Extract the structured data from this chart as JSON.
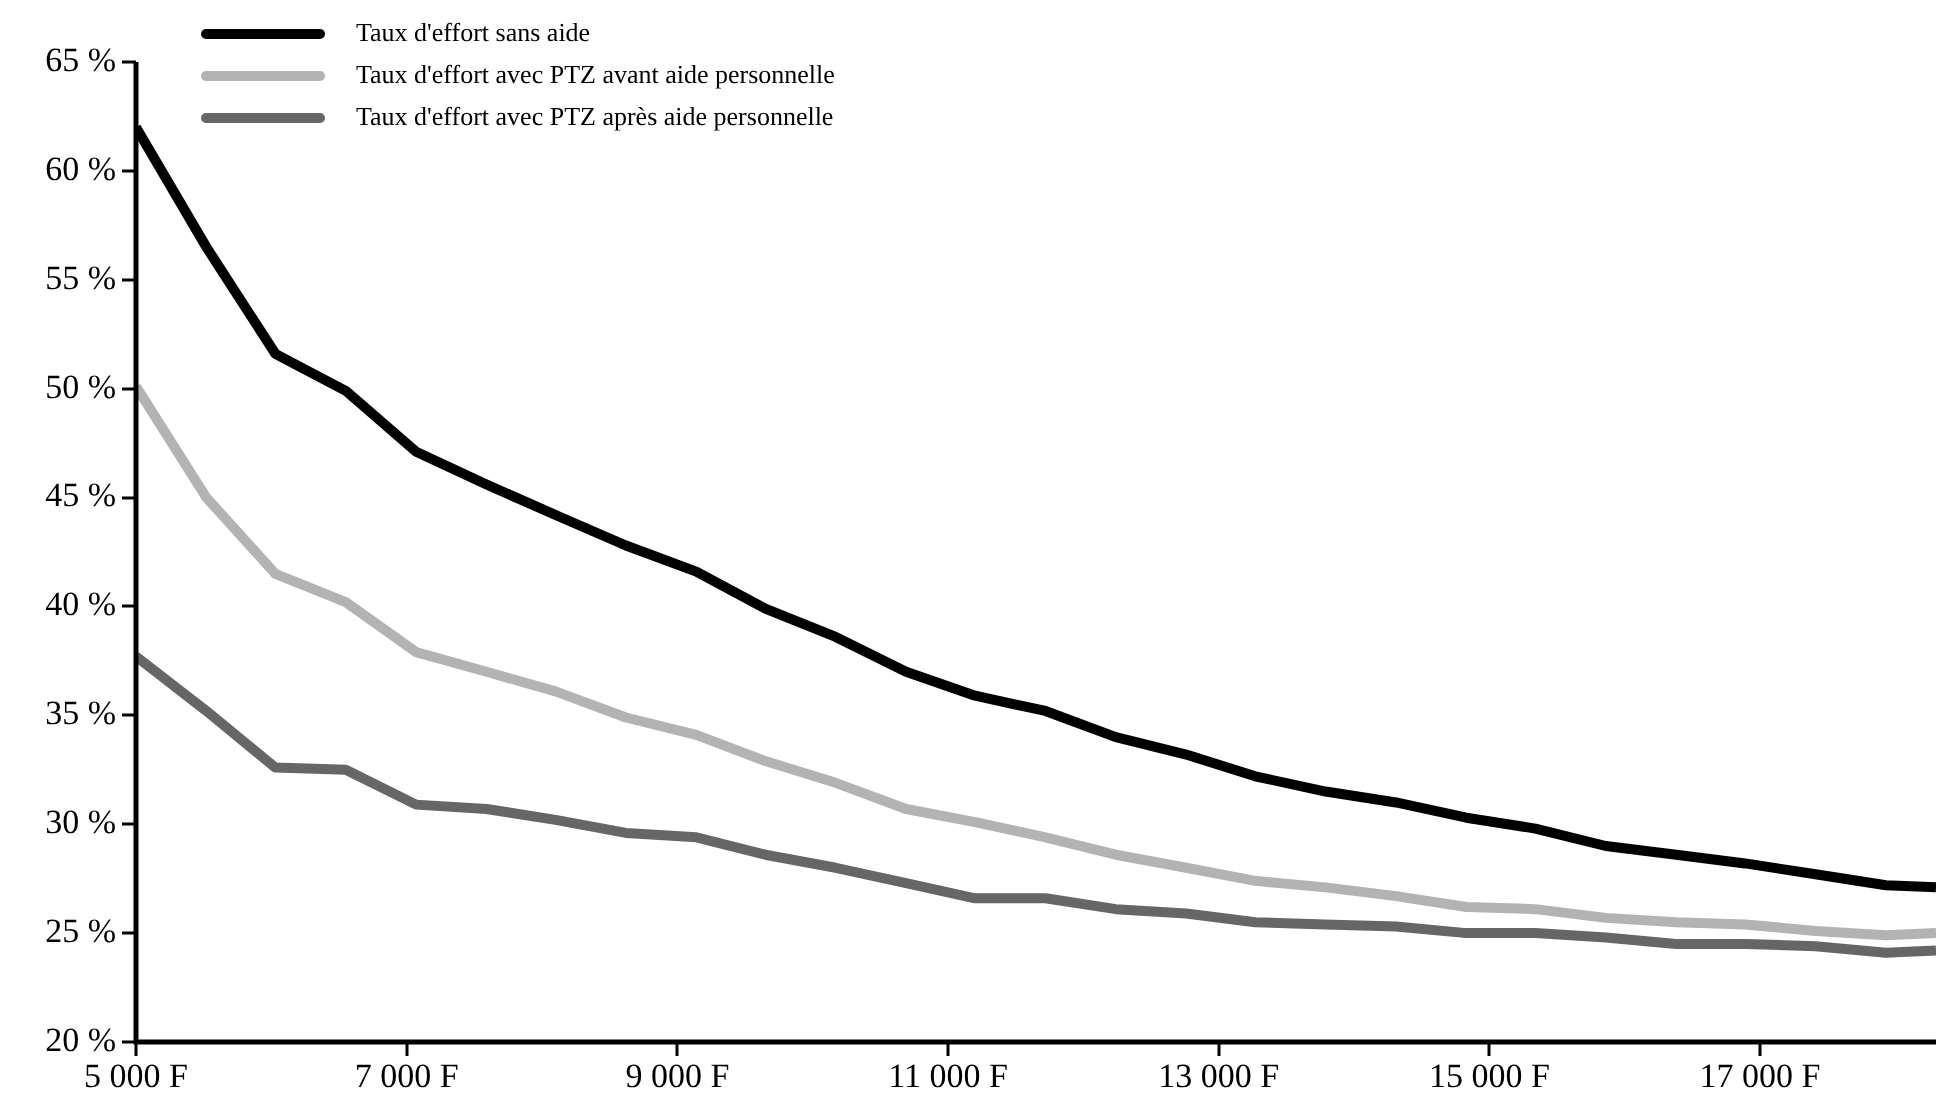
{
  "chart_data": {
    "type": "line",
    "x": [
      5000,
      5520,
      6030,
      6550,
      7070,
      7590,
      8100,
      8620,
      9140,
      9650,
      10170,
      10690,
      11200,
      11720,
      12240,
      12760,
      13270,
      13790,
      14310,
      14830,
      15340,
      15860,
      16380,
      16890,
      17410,
      17930,
      18300
    ],
    "series": [
      {
        "name": "Taux d'effort sans aide",
        "color": "#000000",
        "values": [
          62.0,
          56.5,
          51.6,
          49.9,
          47.1,
          45.6,
          44.2,
          42.8,
          41.6,
          39.9,
          38.6,
          37.0,
          35.9,
          35.2,
          34.0,
          33.2,
          32.2,
          31.5,
          31.0,
          30.3,
          29.8,
          29.0,
          28.6,
          28.2,
          27.7,
          27.2,
          27.1
        ]
      },
      {
        "name": "Taux d'effort avec PTZ avant aide personnelle",
        "color": "#b3b3b3",
        "values": [
          50.1,
          45.0,
          41.5,
          40.2,
          37.9,
          37.0,
          36.1,
          34.9,
          34.1,
          32.9,
          31.9,
          30.7,
          30.1,
          29.4,
          28.6,
          28.0,
          27.4,
          27.1,
          26.7,
          26.2,
          26.1,
          25.7,
          25.5,
          25.4,
          25.1,
          24.9,
          25.0
        ]
      },
      {
        "name": "Taux d'effort avec PTZ après aide personnelle",
        "color": "#666666",
        "values": [
          37.7,
          35.2,
          32.6,
          32.5,
          30.9,
          30.7,
          30.2,
          29.6,
          29.4,
          28.6,
          28.0,
          27.3,
          26.6,
          26.6,
          26.1,
          25.9,
          25.5,
          25.4,
          25.3,
          25.0,
          25.0,
          24.8,
          24.5,
          24.5,
          24.4,
          24.1,
          24.2
        ]
      }
    ],
    "xlim": [
      5000,
      18300
    ],
    "xticks": [
      {
        "value": 5000,
        "label": "5 000 F"
      },
      {
        "value": 7000,
        "label": "7 000 F"
      },
      {
        "value": 9000,
        "label": "9 000 F"
      },
      {
        "value": 11000,
        "label": "11 000 F"
      },
      {
        "value": 13000,
        "label": "13 000 F"
      },
      {
        "value": 15000,
        "label": "15 000 F"
      },
      {
        "value": 17000,
        "label": "17 000 F"
      }
    ],
    "ylim": [
      20,
      65
    ],
    "yticks": [
      {
        "value": 20,
        "label": "20 %"
      },
      {
        "value": 25,
        "label": "25 %"
      },
      {
        "value": 30,
        "label": "30 %"
      },
      {
        "value": 35,
        "label": "35 %"
      },
      {
        "value": 40,
        "label": "40 %"
      },
      {
        "value": 45,
        "label": "45 %"
      },
      {
        "value": 50,
        "label": "50 %"
      },
      {
        "value": 55,
        "label": "55 %"
      },
      {
        "value": 60,
        "label": "60 %"
      },
      {
        "value": 65,
        "label": "65 %"
      }
    ],
    "legend": "top left",
    "grid": false,
    "marker": "none",
    "line_style": "solid"
  }
}
